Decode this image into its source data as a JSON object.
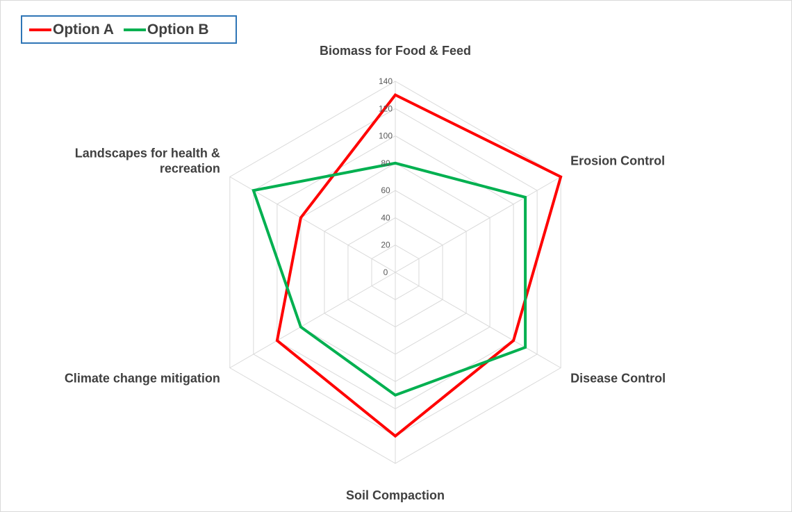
{
  "chart_data": {
    "type": "radar",
    "categories": [
      "Biomass for Food & Feed",
      "Erosion Control",
      "Disease Control",
      "Soil Compaction",
      "Climate change mitigation",
      "Landscapes for health & recreation"
    ],
    "category_lines": [
      [
        "Biomass for Food & Feed"
      ],
      [
        "Erosion Control"
      ],
      [
        "Disease Control"
      ],
      [
        "Soil Compaction"
      ],
      [
        "Climate change mitigation"
      ],
      [
        "Landscapes for health &",
        "recreation"
      ]
    ],
    "series": [
      {
        "name": "Option A",
        "color": "#ff0000",
        "values": [
          130,
          140,
          100,
          120,
          100,
          80
        ]
      },
      {
        "name": "Option B",
        "color": "#00b050",
        "values": [
          80,
          110,
          110,
          90,
          80,
          120
        ]
      }
    ],
    "rmin": 0,
    "rmax": 140,
    "ticks": [
      "0",
      "20",
      "40",
      "60",
      "80",
      "100",
      "120",
      "140"
    ],
    "grid": true,
    "legend_position": "top-left"
  },
  "colors": {
    "legend_border": "#2e75b6",
    "grid": "#d9d9d9",
    "label_text": "#404040",
    "tick_text": "#595959"
  }
}
